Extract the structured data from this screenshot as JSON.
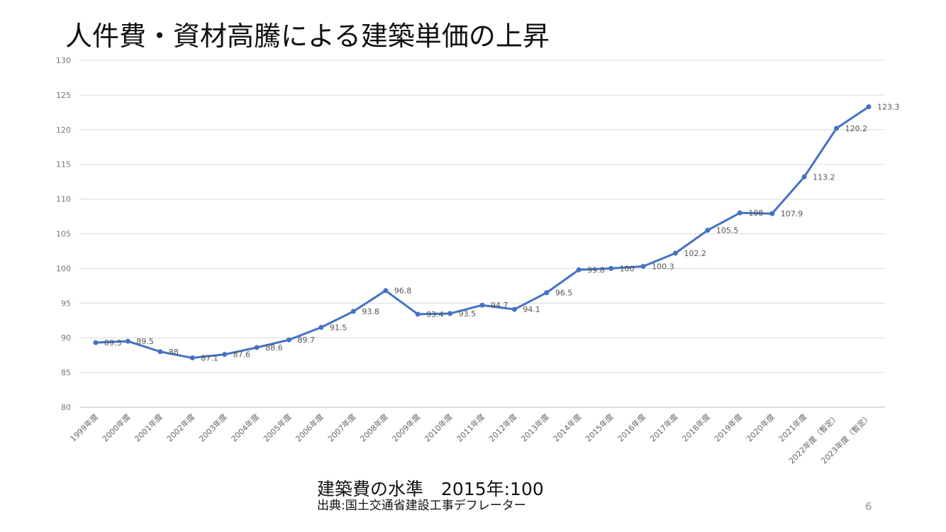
{
  "slide": {
    "title": "人件費・資材高騰による建築単価の上昇",
    "footnote_main": "建築費の水準　2015年:100",
    "footnote_source": "出典:国土交通省建設工事デフレーター",
    "page_number": "6"
  },
  "chart_data": {
    "type": "line",
    "title": "人件費・資材高騰による建築単価の上昇",
    "xlabel": "",
    "ylabel": "",
    "ylim": [
      80,
      130
    ],
    "yticks": [
      80,
      85,
      90,
      95,
      100,
      105,
      110,
      115,
      120,
      125,
      130
    ],
    "grid": true,
    "legend": "none",
    "categories": [
      "1999年度",
      "2000年度",
      "2001年度",
      "2002年度",
      "2003年度",
      "2004年度",
      "2005年度",
      "2006年度",
      "2007年度",
      "2008年度",
      "2009年度",
      "2010年度",
      "2011年度",
      "2012年度",
      "2013年度",
      "2014年度",
      "2015年度",
      "2016年度",
      "2017年度",
      "2018年度",
      "2019年度",
      "2020年度",
      "2021年度",
      "2022年度（暫定）",
      "2023年度（暫定）"
    ],
    "series": [
      {
        "values": [
          89.3,
          89.5,
          88,
          87.1,
          87.6,
          88.6,
          89.7,
          91.5,
          93.8,
          96.8,
          93.4,
          93.5,
          94.7,
          94.1,
          96.5,
          99.8,
          100,
          100.3,
          102.2,
          105.5,
          108,
          107.9,
          113.2,
          120.2,
          123.3
        ],
        "color": "#4472c4"
      }
    ]
  }
}
